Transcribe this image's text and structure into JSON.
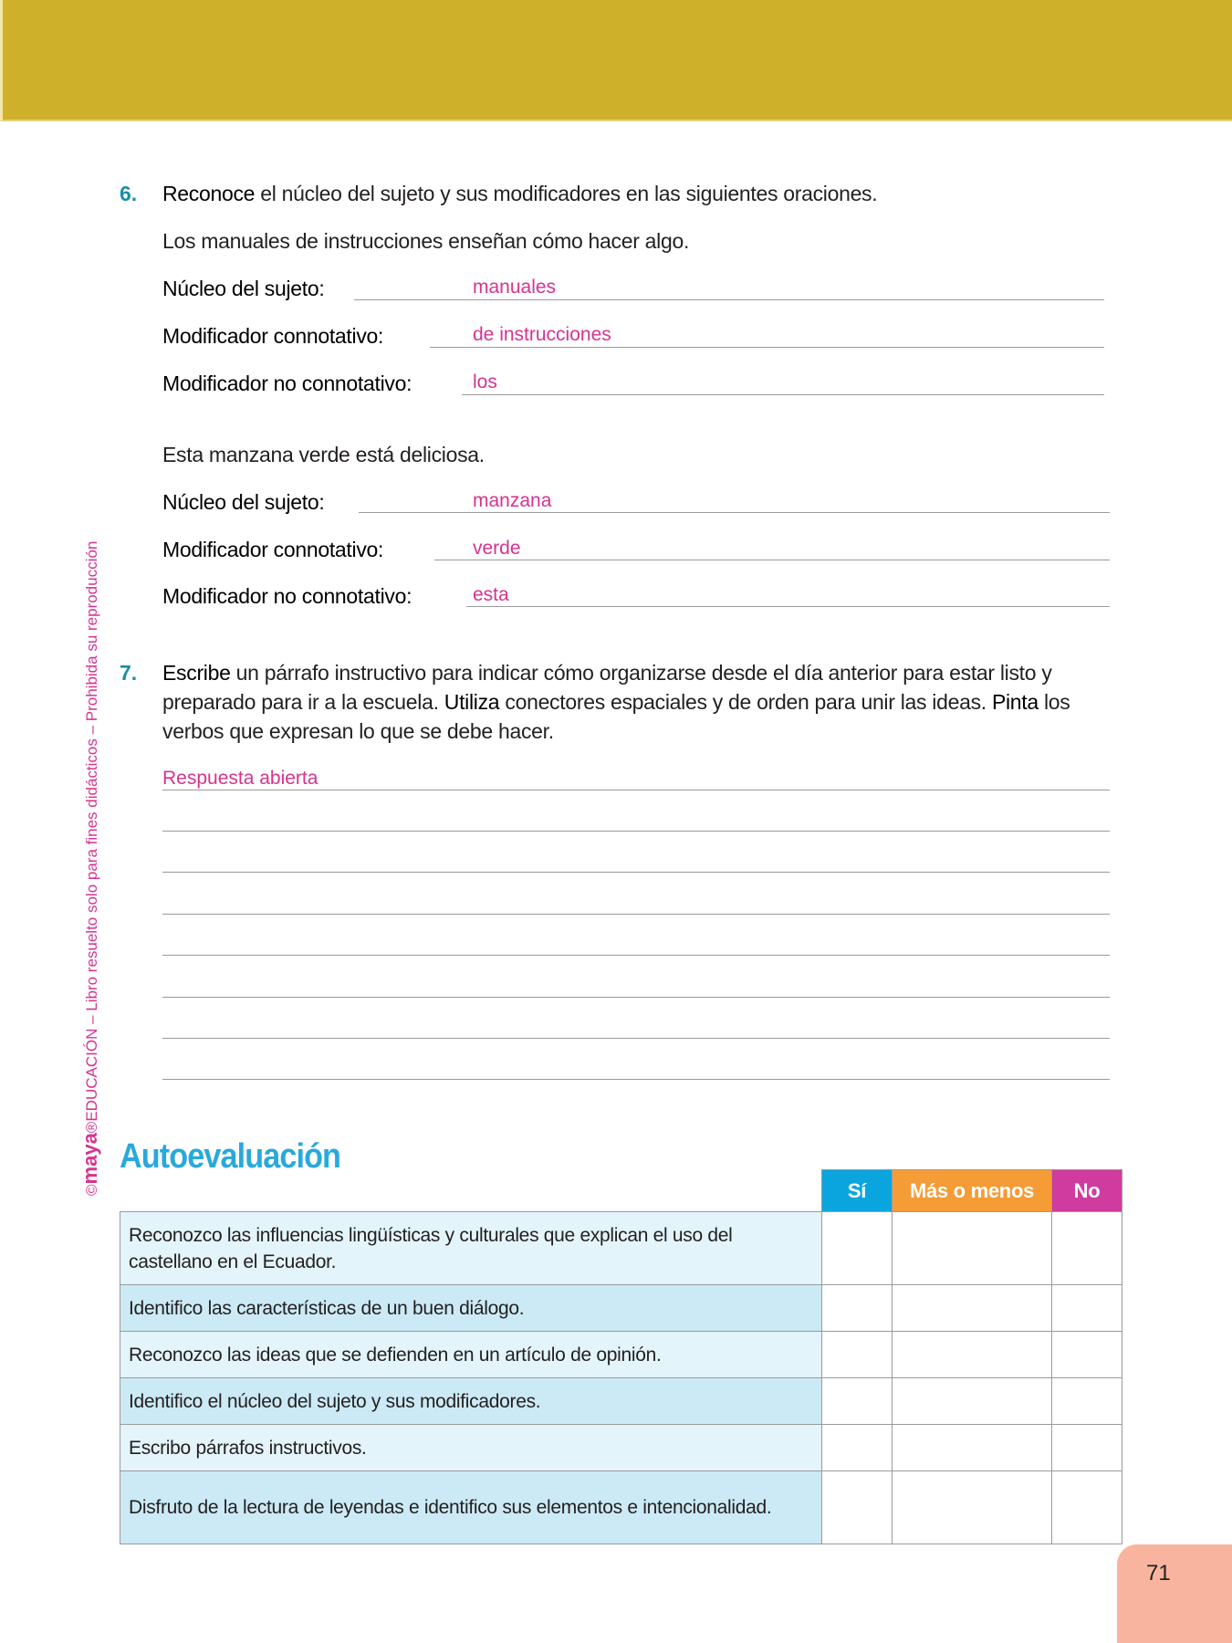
{
  "colors": {
    "header": "#cfb02a",
    "accent_number": "#1a8fa6",
    "answer": "#d6338f",
    "title": "#29a9db",
    "si": "#0aa5df",
    "mas_o_menos": "#f59c37",
    "no": "#d03b9f",
    "row_light": "#e3f4fb",
    "row_dark": "#cbeaf5",
    "page_tab": "#f8b49f"
  },
  "sidebar": {
    "copyright": "©",
    "logo": "maya",
    "registered": "®",
    "text": "EDUCACIÓN – Libro resuelto solo para fines didácticos – Prohibida su reproducción"
  },
  "ex6": {
    "number": "6.",
    "verb": "Reconoce",
    "instruction": " el núcleo del sujeto y sus modificadores en las siguientes oraciones.",
    "sentence1": "Los manuales de instrucciones enseñan cómo hacer algo.",
    "sentence2": "Esta manzana verde está deliciosa.",
    "label_nucleo": "Núcleo del sujeto:",
    "label_conn": "Modificador connotativo:",
    "label_noconn": "Modificador no connotativo:",
    "answers1": {
      "nucleo": "manuales",
      "conn": "de instrucciones",
      "noconn": "los"
    },
    "answers2": {
      "nucleo": "manzana",
      "conn": "verde",
      "noconn": "esta"
    }
  },
  "ex7": {
    "number": "7.",
    "verb1": "Escribe",
    "text1": " un párrafo instructivo para indicar cómo organizarse desde el día anterior para estar listo y preparado para ir a la escuela. ",
    "verb2": "Utiliza",
    "text2": " conectores espaciales y de orden para unir las ideas. ",
    "verb3": "Pinta",
    "text3": " los verbos que expresan lo que se debe hacer.",
    "answer": "Respuesta abierta"
  },
  "autoevaluacion": {
    "title": "Autoevaluación",
    "columns": [
      "Sí",
      "Más o menos",
      "No"
    ],
    "rows": [
      "Reconozco las influencias lingüísticas y culturales que explican el uso del castellano en el Ecuador.",
      "Identifico las características de un buen diálogo.",
      "Reconozco las ideas que se defienden en un artículo de opinión.",
      "Identifico el núcleo del sujeto y sus modificadores.",
      "Escribo párrafos instructivos.",
      "Disfruto de la lectura de leyendas e identifico sus elementos e intencionalidad."
    ]
  },
  "page_number": "71"
}
